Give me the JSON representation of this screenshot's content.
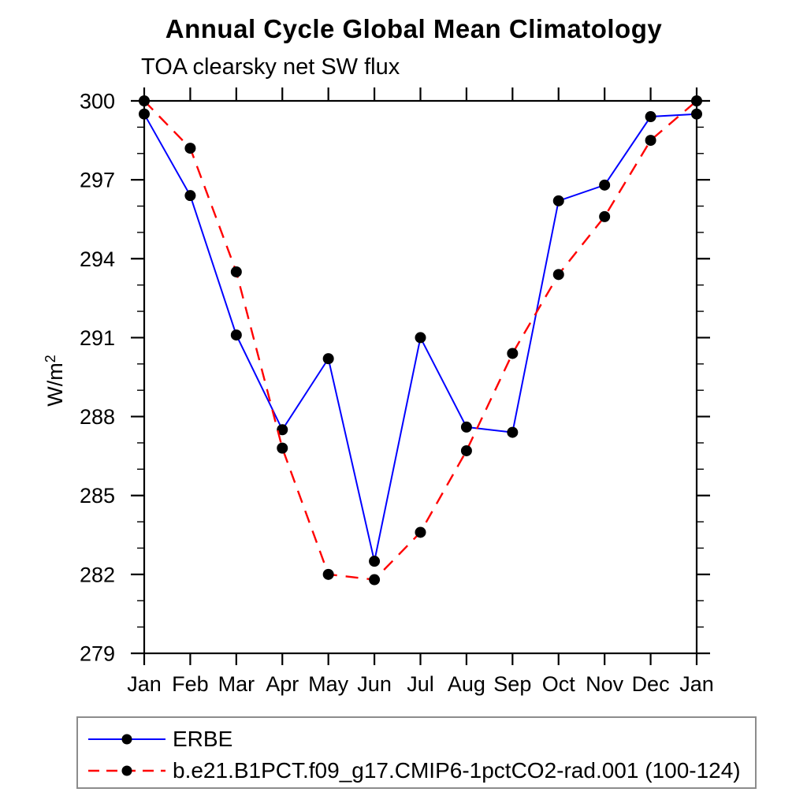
{
  "page": {
    "title": "Annual Cycle Global Mean Climatology",
    "subtitle": "TOA clearsky net SW flux"
  },
  "chart_data": {
    "type": "line",
    "title": "Annual Cycle Global Mean Climatology",
    "subtitle": "TOA clearsky net SW flux",
    "ylabel": {
      "base": "W/m",
      "sup": "2"
    },
    "x_categories": [
      "Jan",
      "Feb",
      "Mar",
      "Apr",
      "May",
      "Jun",
      "Jul",
      "Aug",
      "Sep",
      "Oct",
      "Nov",
      "Dec",
      "Jan"
    ],
    "ylim": [
      279,
      300
    ],
    "ytick_major": [
      279,
      282,
      285,
      288,
      291,
      294,
      297,
      300
    ],
    "ytick_minor_step": 1,
    "grid": false,
    "legend_position": "bottom-left-box",
    "series": [
      {
        "name": "ERBE",
        "line_color": "#0000ff",
        "line_style": "solid",
        "marker": "filled-circle",
        "marker_color": "#000000",
        "values": [
          299.5,
          296.4,
          291.1,
          287.5,
          290.2,
          282.5,
          291.0,
          287.6,
          287.4,
          296.2,
          296.8,
          299.4,
          299.5
        ]
      },
      {
        "name": "b.e21.B1PCT.f09_g17.CMIP6-1pctCO2-rad.001 (100-124)",
        "line_color": "#ff0000",
        "line_style": "dashed",
        "marker": "filled-circle",
        "marker_color": "#000000",
        "values": [
          300.0,
          298.2,
          293.5,
          286.8,
          282.0,
          281.8,
          283.6,
          286.7,
          290.4,
          293.4,
          295.6,
          298.5,
          300.0
        ]
      }
    ],
    "colors": {
      "axis": "#000000",
      "text": "#000000",
      "legend_border": "#8c8c8c",
      "background": "#ffffff"
    }
  }
}
